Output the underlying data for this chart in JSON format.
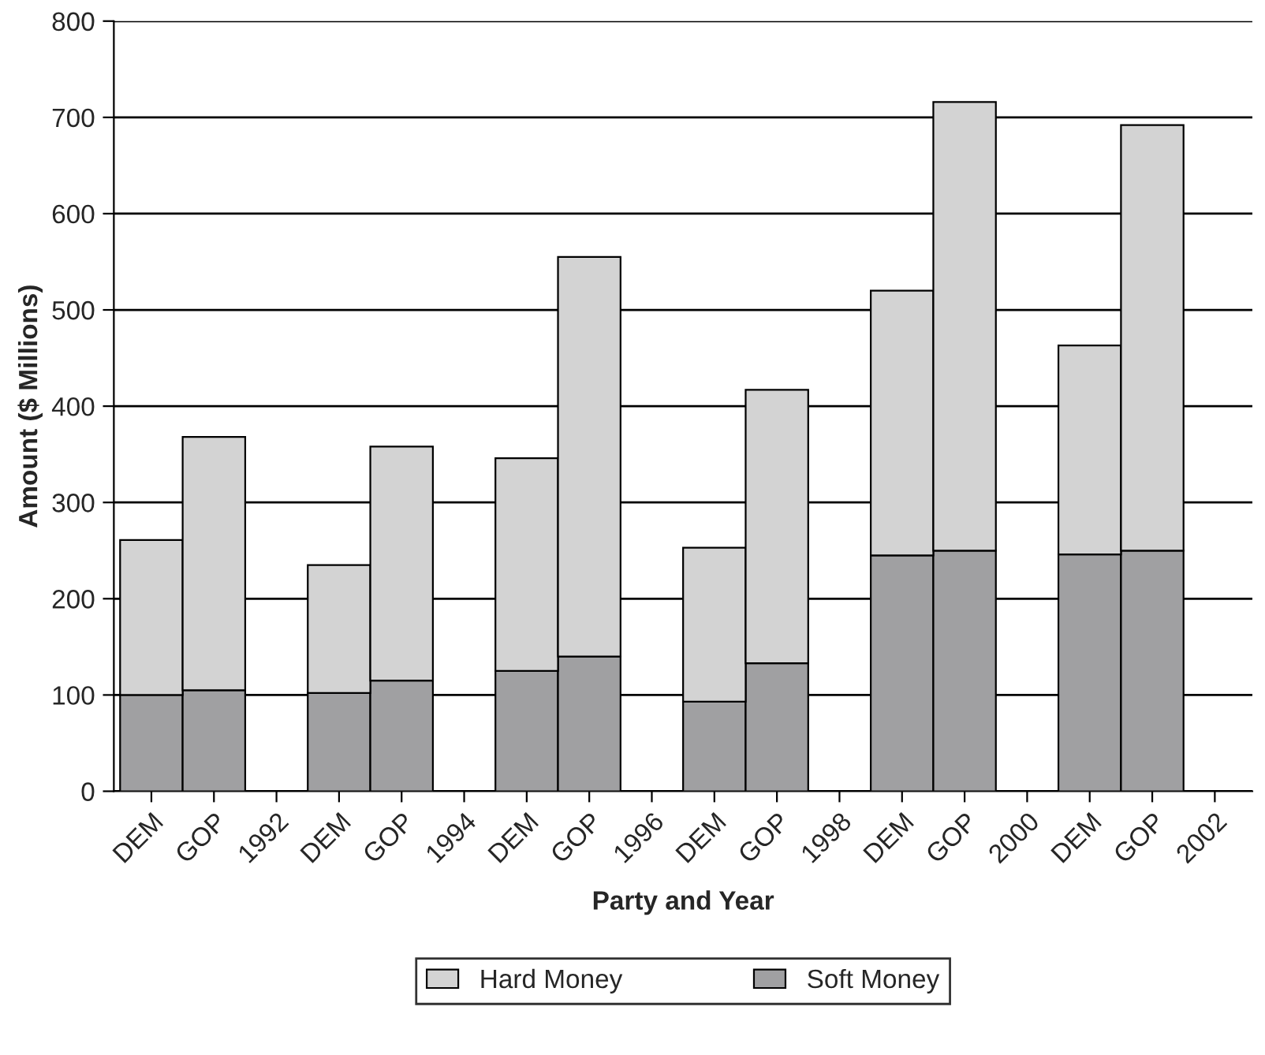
{
  "chart_data": {
    "type": "bar",
    "stacked": true,
    "xlabel": "Party and Year",
    "ylabel": "Amount ($ Millions)",
    "categories": [
      "DEM",
      "GOP",
      "1992",
      "DEM",
      "GOP",
      "1994",
      "DEM",
      "GOP",
      "1996",
      "DEM",
      "GOP",
      "1998",
      "DEM",
      "GOP",
      "2000",
      "DEM",
      "GOP",
      "2002"
    ],
    "series": [
      {
        "name": "Soft Money",
        "color": "#a0a0a2",
        "values": [
          100,
          105,
          null,
          102,
          115,
          null,
          125,
          140,
          null,
          93,
          133,
          null,
          245,
          250,
          null,
          246,
          250,
          null
        ]
      },
      {
        "name": "Hard Money",
        "color": "#d3d3d3",
        "values": [
          161,
          263,
          null,
          133,
          243,
          null,
          221,
          415,
          null,
          160,
          284,
          null,
          275,
          466,
          null,
          217,
          442,
          null
        ]
      }
    ],
    "ylim": [
      0,
      800
    ],
    "yticks": [
      0,
      100,
      200,
      300,
      400,
      500,
      600,
      700,
      800
    ],
    "grid": "y",
    "legend": "bottom"
  }
}
